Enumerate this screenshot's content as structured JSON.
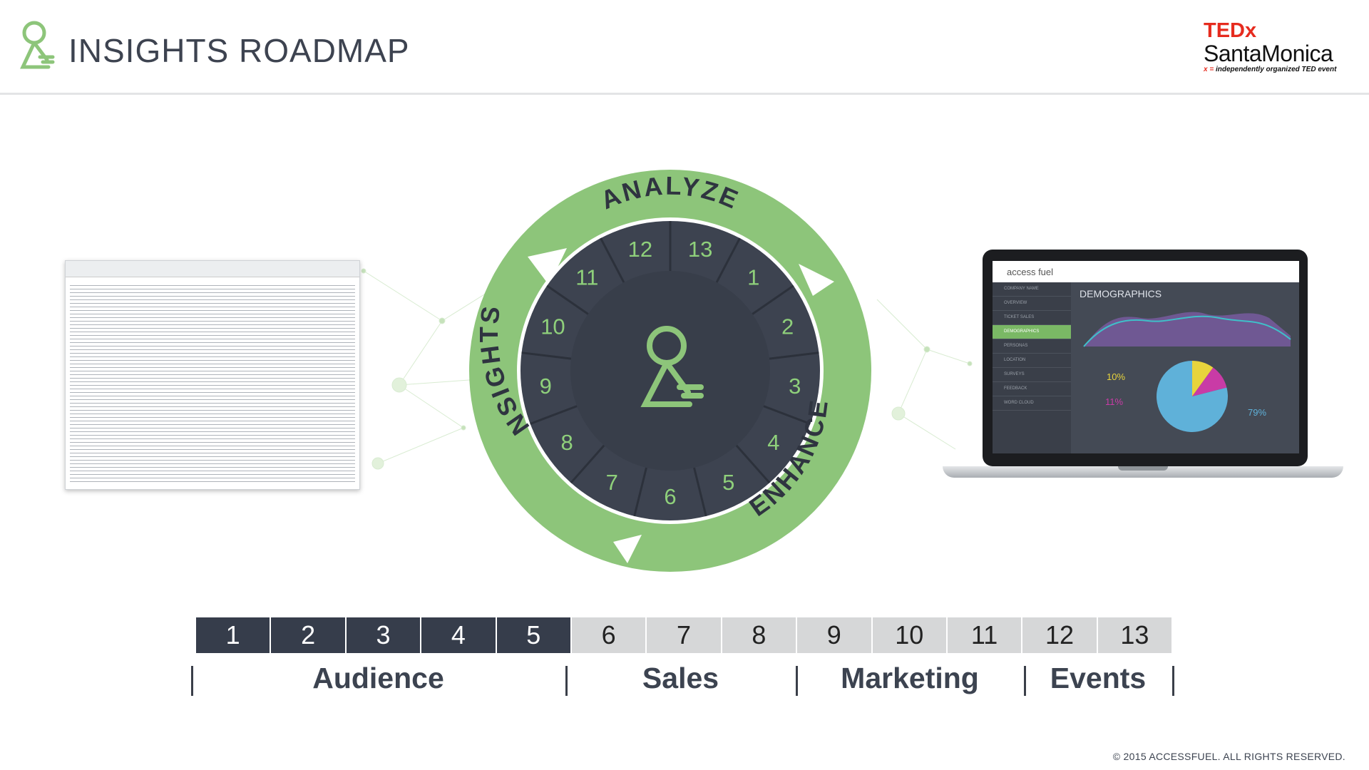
{
  "header": {
    "title": "INSIGHTS ROADMAP",
    "partner_logo": {
      "line1": "TEDx",
      "line2": "SantaMonica",
      "line3_mark": "x =",
      "line3": "independently organized TED event"
    }
  },
  "cycle": {
    "numbers": [
      "1",
      "2",
      "3",
      "4",
      "5",
      "6",
      "7",
      "8",
      "9",
      "10",
      "11",
      "12",
      "13"
    ],
    "labels": {
      "top": "ANALYZE",
      "right": "ENHANCE",
      "left": "INSIGHTS"
    }
  },
  "laptop_screen": {
    "brand": "access fuel",
    "page_title": "DEMOGRAPHICS",
    "sidebar_items": [
      "Company Name",
      "Overview",
      "Ticket Sales",
      "Demographics",
      "Personas",
      "Location",
      "Surveys",
      "Feedback",
      "Word Cloud"
    ],
    "active_item": "Demographics",
    "pie": {
      "slices": [
        {
          "label": "10%",
          "value": 10,
          "color": "#e8d43c"
        },
        {
          "label": "11%",
          "value": 11,
          "color": "#c93ba6"
        },
        {
          "label": "79%",
          "value": 79,
          "color": "#5fb1d9"
        }
      ]
    }
  },
  "timeline": {
    "cells": [
      {
        "label": "1",
        "phase": "done"
      },
      {
        "label": "2",
        "phase": "done"
      },
      {
        "label": "3",
        "phase": "done"
      },
      {
        "label": "4",
        "phase": "done"
      },
      {
        "label": "5",
        "phase": "done"
      },
      {
        "label": "6",
        "phase": "todo"
      },
      {
        "label": "7",
        "phase": "todo"
      },
      {
        "label": "8",
        "phase": "todo"
      },
      {
        "label": "9",
        "phase": "todo"
      },
      {
        "label": "10",
        "phase": "todo"
      },
      {
        "label": "11",
        "phase": "todo"
      },
      {
        "label": "12",
        "phase": "todo"
      },
      {
        "label": "13",
        "phase": "todo"
      }
    ],
    "groups": [
      "Audience",
      "Sales",
      "Marketing",
      "Events"
    ]
  },
  "footer": {
    "copyright": "© 2015 ACCESSFUEL.  ALL RIGHTS RESERVED."
  },
  "colors": {
    "accent_green": "#8dc57a",
    "dark_slate": "#363d4b",
    "light_gray": "#d6d7d8",
    "ted_red": "#e62b1e"
  }
}
